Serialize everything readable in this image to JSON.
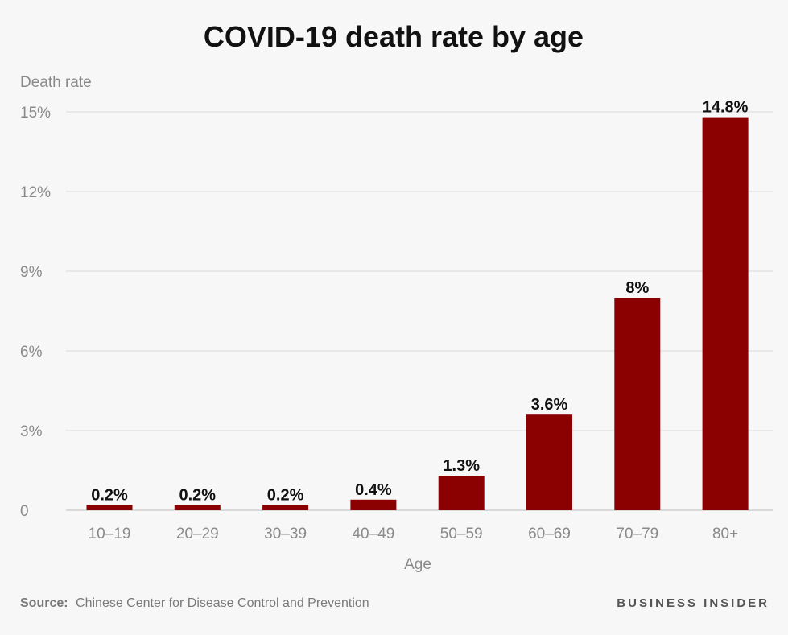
{
  "chart_data": {
    "type": "bar",
    "title": "COVID-19 death rate by age",
    "ylabel": "Death rate",
    "xlabel": "Age",
    "categories": [
      "10–19",
      "20–29",
      "30–39",
      "40–49",
      "50–59",
      "60–69",
      "70–79",
      "80+"
    ],
    "values": [
      0.2,
      0.2,
      0.2,
      0.4,
      1.3,
      3.6,
      8,
      14.8
    ],
    "data_labels": [
      "0.2%",
      "0.2%",
      "0.2%",
      "0.4%",
      "1.3%",
      "3.6%",
      "8%",
      "14.8%"
    ],
    "ylim": [
      0,
      15
    ],
    "yticks": [
      0,
      3,
      6,
      9,
      12,
      15
    ],
    "ytick_labels": [
      "0",
      "3%",
      "6%",
      "9%",
      "12%",
      "15%"
    ],
    "grid": true,
    "bar_color": "#8b0000"
  },
  "footer": {
    "source_label": "Source:",
    "source_text": "Chinese Center for Disease Control and Prevention",
    "brand": "BUSINESS INSIDER"
  }
}
